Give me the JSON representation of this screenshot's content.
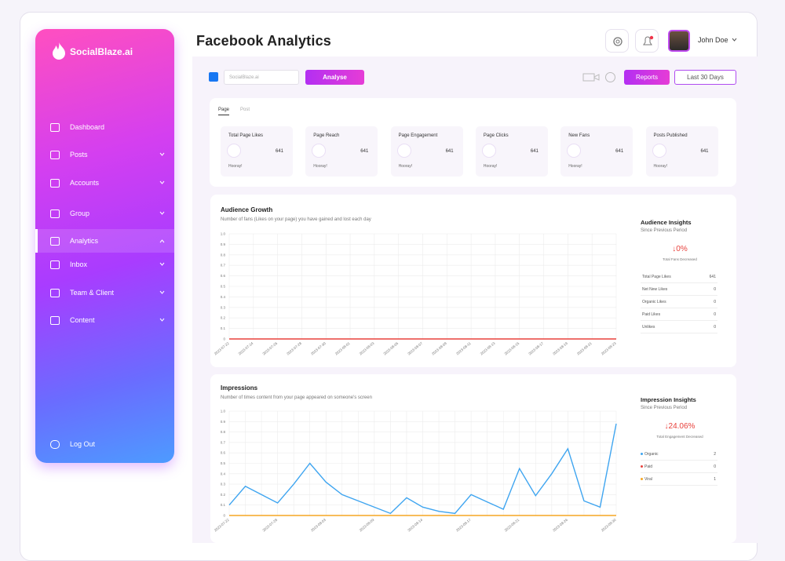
{
  "sidebar": {
    "brand": "SocialBlaze.ai",
    "menu": [
      {
        "label": "Dashboard",
        "expandable": false,
        "active": false
      },
      {
        "label": "Posts",
        "expandable": true,
        "active": false
      },
      {
        "label": "Accounts",
        "expandable": true,
        "active": false
      },
      {
        "label": "Group",
        "expandable": true,
        "active": false
      },
      {
        "label": "Analytics",
        "expandable": true,
        "active": true
      },
      {
        "label": "Inbox",
        "expandable": true,
        "active": false
      },
      {
        "label": "Team & Client",
        "expandable": true,
        "active": false
      },
      {
        "label": "Content",
        "expandable": true,
        "active": false
      }
    ],
    "logout": "Log Out"
  },
  "header": {
    "title": "Facebook Analytics",
    "user": "John Doe"
  },
  "toolbar": {
    "account": "SocialBlaze.ai",
    "analyse": "Analyse",
    "reports": "Reports",
    "range": "Last 30 Days"
  },
  "summary": {
    "tabs": [
      "Page",
      "Post"
    ],
    "active_tab": 0,
    "cards": [
      {
        "title": "Total Page Likes",
        "value": 641,
        "note": "Hooray!"
      },
      {
        "title": "Page Reach",
        "value": 641,
        "note": "Hooray!"
      },
      {
        "title": "Page Engagement",
        "value": 641,
        "note": "Hooray!"
      },
      {
        "title": "Page Clicks",
        "value": 641,
        "note": "Hooray!"
      },
      {
        "title": "New Fans",
        "value": 641,
        "note": "Hooray!"
      },
      {
        "title": "Posts Published",
        "value": 641,
        "note": "Hooray!"
      }
    ]
  },
  "audience": {
    "title": "Audience Growth",
    "subtitle": "Number of fans (Likes on your page) you have gained and lost each day",
    "chart": {
      "type": "line",
      "categories": [
        "2023-07-22",
        "2023-07-24",
        "2023-07-26",
        "2023-07-28",
        "2023-07-30",
        "2023-08-01",
        "2023-08-03",
        "2023-08-05",
        "2023-08-07",
        "2023-08-09",
        "2023-08-11",
        "2023-08-13",
        "2023-08-15",
        "2023-08-17",
        "2023-08-19",
        "2023-08-21",
        "2023-08-23"
      ],
      "series": [
        {
          "color": "#e8413c",
          "values": [
            0,
            0,
            0,
            0,
            0,
            0,
            0,
            0,
            0,
            0,
            0,
            0,
            0,
            0,
            0,
            0,
            0
          ]
        }
      ],
      "ylim": [
        0,
        1
      ],
      "yticks": [
        0,
        0.1,
        0.2,
        0.3,
        0.4,
        0.5,
        0.6,
        0.7,
        0.8,
        0.9,
        {
          "value": 1,
          "label": "1.0"
        }
      ],
      "grid": true
    },
    "insights": {
      "title": "Audience Insights",
      "subtitle": "Since Previous Period",
      "change": "↓0%",
      "change_note": "Total Fans Decreased",
      "rows": [
        {
          "label": "Total Page Likes",
          "value": 641
        },
        {
          "label": "Net New Likes",
          "value": 0
        },
        {
          "label": "Organic Likes",
          "value": 0
        },
        {
          "label": "Paid Likes",
          "value": 0
        },
        {
          "label": "Unlikes",
          "value": 0
        }
      ]
    }
  },
  "impressions": {
    "title": "Impressions",
    "subtitle": "Number of times content from your page appeared on someone's screen",
    "chart": {
      "type": "line",
      "categories": [
        "2023-07-22",
        null,
        null,
        "2023-07-28",
        null,
        null,
        "2023-08-03",
        null,
        null,
        "2023-08-09",
        null,
        null,
        "2023-08-14",
        null,
        null,
        "2023-08-17",
        null,
        null,
        "2023-08-21",
        null,
        null,
        "2023-08-26",
        null,
        null,
        "2023-08-30"
      ],
      "series": [
        {
          "color": "#3fa5f0",
          "values": [
            0.1,
            0.28,
            0.2,
            0.12,
            0.3,
            0.5,
            0.32,
            0.2,
            0.14,
            0.08,
            0.02,
            0.17,
            0.08,
            0.04,
            0.02,
            0.2,
            0.13,
            0.06,
            0.45,
            0.19,
            0.4,
            0.64,
            0.14,
            0.08,
            0.88
          ]
        },
        {
          "color": "#f5a623",
          "values": [
            0,
            0,
            0,
            0,
            0,
            0,
            0,
            0,
            0,
            0,
            0,
            0,
            0,
            0,
            0,
            0,
            0,
            0,
            0,
            0,
            0,
            0,
            0,
            0,
            0
          ]
        }
      ],
      "ylim": [
        0,
        1
      ],
      "yticks": [
        0,
        0.1,
        0.2,
        0.3,
        0.4,
        0.5,
        0.6,
        0.7,
        0.8,
        0.9,
        {
          "value": 1,
          "label": "1.0"
        }
      ],
      "grid": true
    },
    "insights": {
      "title": "Impression Insights",
      "subtitle": "Since Previous Period",
      "change": "↓24.06%",
      "change_note": "Total Engagement Decreased",
      "rows": [
        {
          "label": "Organic",
          "value": 2,
          "color": "#3fa5f0"
        },
        {
          "label": "Paid",
          "value": 0,
          "color": "#e8413c"
        },
        {
          "label": "Viral",
          "value": 1,
          "color": "#f5a623"
        }
      ]
    }
  }
}
